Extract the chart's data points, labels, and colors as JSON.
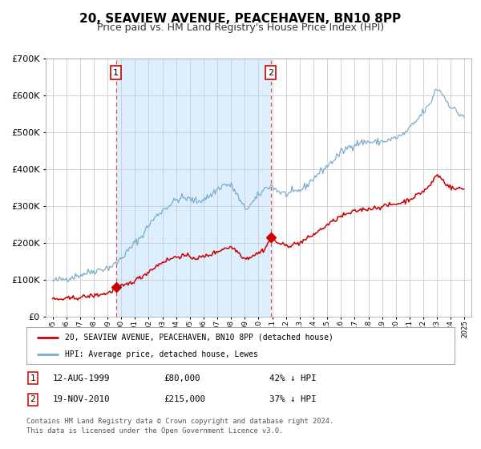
{
  "title": "20, SEAVIEW AVENUE, PEACEHAVEN, BN10 8PP",
  "subtitle": "Price paid vs. HM Land Registry's House Price Index (HPI)",
  "red_label": "20, SEAVIEW AVENUE, PEACEHAVEN, BN10 8PP (detached house)",
  "blue_label": "HPI: Average price, detached house, Lewes",
  "footer1": "Contains HM Land Registry data © Crown copyright and database right 2024.",
  "footer2": "This data is licensed under the Open Government Licence v3.0.",
  "annotation1": {
    "num": "1",
    "date": "12-AUG-1999",
    "price": "£80,000",
    "pct": "42% ↓ HPI"
  },
  "annotation2": {
    "num": "2",
    "date": "19-NOV-2010",
    "price": "£215,000",
    "pct": "37% ↓ HPI"
  },
  "marker1_x": 1999.62,
  "marker1_y": 80000,
  "marker2_x": 2010.89,
  "marker2_y": 215000,
  "vline1_x": 1999.62,
  "vline2_x": 2010.89,
  "shade_xmin": 1999.62,
  "shade_xmax": 2010.89,
  "ylim": [
    0,
    700000
  ],
  "xlim_left": 1994.5,
  "xlim_right": 2025.5,
  "red_color": "#cc0000",
  "blue_line_color": "#7aadcc",
  "shade_color": "#ddeeff",
  "vline_color": "#dd5555",
  "background_color": "#ffffff",
  "grid_color": "#cccccc",
  "annotation_box_color": "#cc0000",
  "title_fontsize": 11,
  "subtitle_fontsize": 9
}
